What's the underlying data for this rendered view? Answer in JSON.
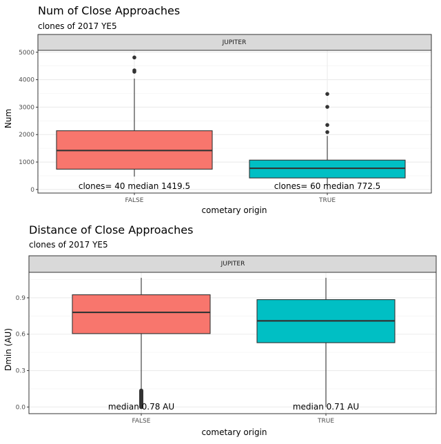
{
  "chart_data": [
    {
      "type": "boxplot",
      "title": "Num of Close Approaches",
      "subtitle": "clones of 2017 YE5",
      "facet": "JUPITER",
      "xlabel": "cometary origin",
      "ylabel": "Num",
      "ylim": [
        -130,
        5070
      ],
      "y_ticks": [
        0,
        1000,
        2000,
        3000,
        4000,
        5000
      ],
      "y_tick_labels": [
        "0",
        "1000",
        "2000",
        "3000",
        "4000",
        "5000"
      ],
      "y_minor": [
        500,
        1500,
        2500,
        3500,
        4500
      ],
      "categories": [
        "FALSE",
        "TRUE"
      ],
      "colors": [
        "#F8766D",
        "#00BFC4"
      ],
      "boxes": [
        {
          "category": "FALSE",
          "min": 470,
          "q1": 740,
          "median": 1419.5,
          "q3": 2140,
          "max": 4040,
          "outliers": [
            4290,
            4340,
            4810
          ]
        },
        {
          "category": "TRUE",
          "min": 0,
          "q1": 420,
          "median": 772.5,
          "q3": 1070,
          "max": 1950,
          "outliers": [
            2090,
            2350,
            3010,
            3480
          ]
        }
      ],
      "annotations": [
        {
          "category": "FALSE",
          "text": "clones= 40 median 1419.5",
          "y": 0
        },
        {
          "category": "TRUE",
          "text": "clones= 60 median 772.5",
          "y": 0
        }
      ]
    },
    {
      "type": "boxplot",
      "title": "Distance of Close Approaches",
      "subtitle": "clones of 2017 YE5",
      "facet": "JUPITER",
      "xlabel": "cometary origin",
      "ylabel": "Dmin (AU)",
      "ylim": [
        -0.055,
        1.11
      ],
      "y_ticks": [
        0,
        0.3,
        0.6,
        0.9
      ],
      "y_tick_labels": [
        "0.0",
        "0.3",
        "0.6",
        "0.9"
      ],
      "y_minor": [
        0.15,
        0.45,
        0.75,
        1.05
      ],
      "categories": [
        "FALSE",
        "TRUE"
      ],
      "colors": [
        "#F8766D",
        "#00BFC4"
      ],
      "boxes": [
        {
          "category": "FALSE",
          "min": 0.135,
          "q1": 0.605,
          "median": 0.78,
          "q3": 0.925,
          "max": 1.065,
          "outlier_range": [
            0.0,
            0.135
          ]
        },
        {
          "category": "TRUE",
          "min": 0.0,
          "q1": 0.53,
          "median": 0.71,
          "q3": 0.885,
          "max": 1.065,
          "outliers": []
        }
      ],
      "annotations": [
        {
          "category": "FALSE",
          "text": "median 0.78 AU",
          "y": 0
        },
        {
          "category": "TRUE",
          "text": "median 0.71 AU",
          "y": 0
        }
      ]
    }
  ]
}
